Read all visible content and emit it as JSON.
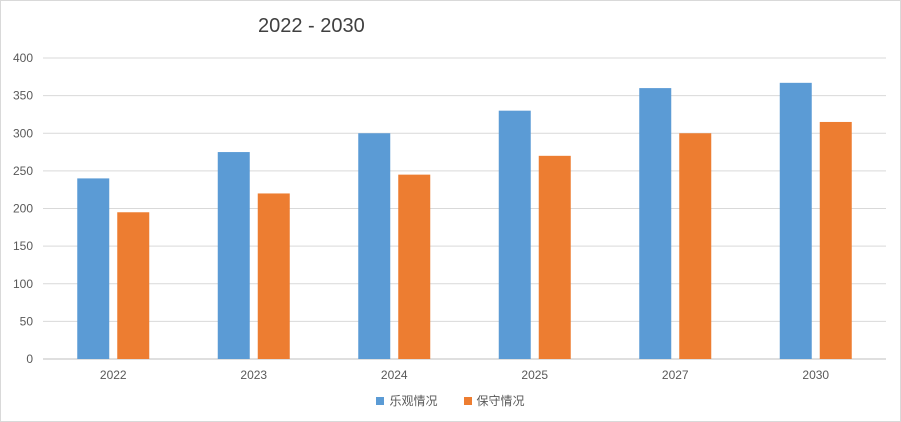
{
  "chart_data": {
    "type": "bar",
    "title": "2022 - 2030",
    "categories": [
      "2022",
      "2023",
      "2024",
      "2025",
      "2027",
      "2030"
    ],
    "series": [
      {
        "name": "乐观情况",
        "color": "#5b9bd5",
        "values": [
          240,
          275,
          300,
          330,
          360,
          367
        ]
      },
      {
        "name": "保守情况",
        "color": "#ed7d31",
        "values": [
          195,
          220,
          245,
          270,
          300,
          315
        ]
      }
    ],
    "ylim": [
      0,
      400
    ],
    "yticks": [
      0,
      50,
      100,
      150,
      200,
      250,
      300,
      350,
      400
    ],
    "xlabel": "",
    "ylabel": "",
    "grid": true,
    "legend": "bottom"
  }
}
